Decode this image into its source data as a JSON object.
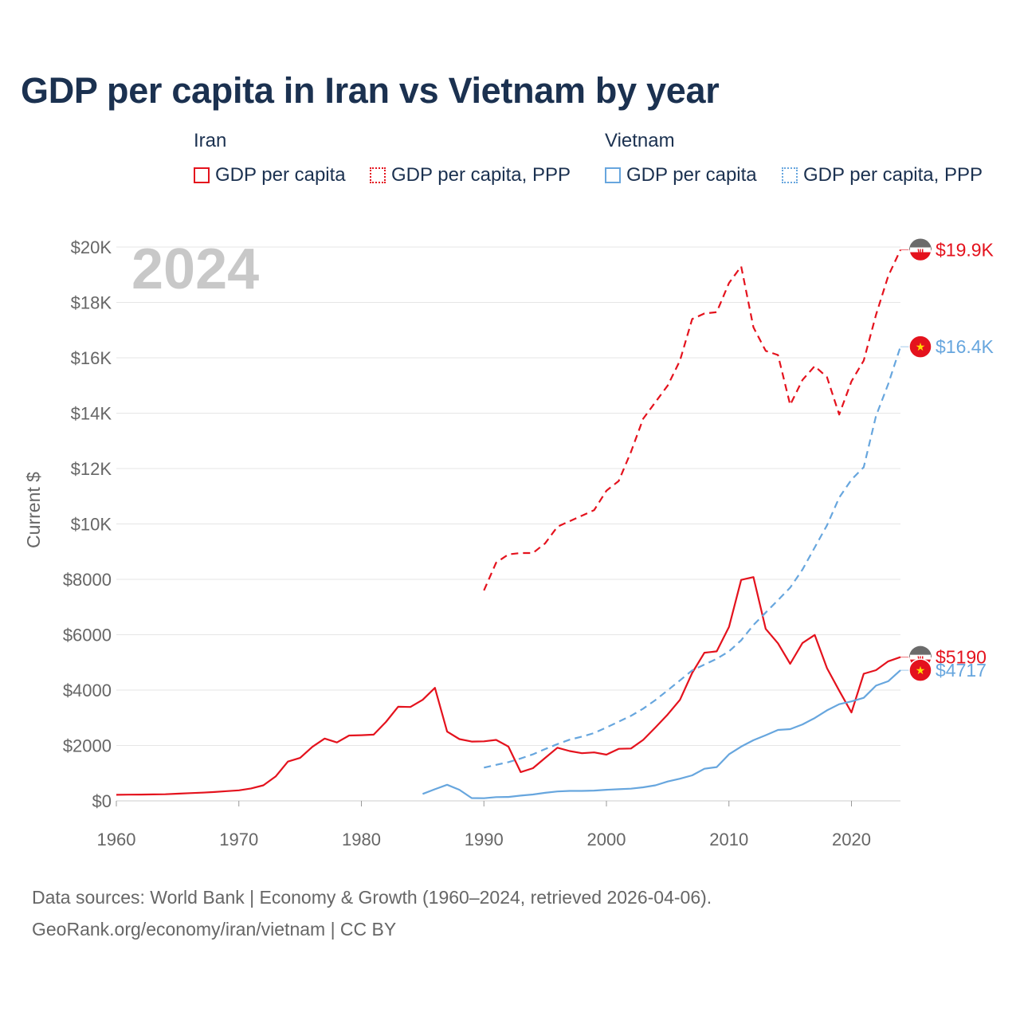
{
  "title": "GDP per capita in Iran vs Vietnam by year",
  "legend": {
    "groups": [
      {
        "country": "Iran",
        "color": "#e4121d",
        "items": [
          "GDP per capita",
          "GDP per capita, PPP"
        ]
      },
      {
        "country": "Vietnam",
        "color": "#67a6de",
        "items": [
          "GDP per capita",
          "GDP per capita, PPP"
        ]
      }
    ]
  },
  "footer": {
    "line1": "Data sources: World Bank | Economy & Growth (1960–2024, retrieved 2026-04-06).",
    "line2": "GeoRank.org/economy/iran/vietnam | CC BY"
  },
  "chart_data": {
    "type": "line",
    "title": "GDP per capita in Iran vs Vietnam by year",
    "year_watermark": "2024",
    "ylabel": "Current $",
    "xlabel": "",
    "xlim": [
      1960,
      2024
    ],
    "ylim": [
      0,
      20000
    ],
    "x_ticks": [
      1960,
      1970,
      1980,
      1990,
      2000,
      2010,
      2020
    ],
    "x_tick_labels": [
      "1960",
      "1970",
      "1980",
      "1990",
      "2000",
      "2010",
      "2020"
    ],
    "y_ticks": [
      0,
      2000,
      4000,
      6000,
      8000,
      10000,
      12000,
      14000,
      16000,
      18000,
      20000
    ],
    "y_tick_labels": [
      "$0",
      "$2000",
      "$4000",
      "$6000",
      "$8000",
      "$10K",
      "$12K",
      "$14K",
      "$16K",
      "$18K",
      "$20K"
    ],
    "grid": true,
    "series": [
      {
        "name": "Iran GDP per capita",
        "country": "Iran",
        "metric": "GDP per capita",
        "color": "#e4121d",
        "dash": "solid",
        "start_year": 1960,
        "values": [
          220,
          225,
          228,
          232,
          240,
          260,
          280,
          295,
          320,
          350,
          380,
          450,
          560,
          880,
          1420,
          1550,
          1950,
          2250,
          2110,
          2360,
          2370,
          2390,
          2850,
          3400,
          3390,
          3650,
          4080,
          2500,
          2230,
          2140,
          2150,
          2200,
          1960,
          1040,
          1180,
          1550,
          1920,
          1800,
          1720,
          1750,
          1670,
          1880,
          1890,
          2200,
          2650,
          3120,
          3650,
          4620,
          5350,
          5400,
          6280,
          7980,
          8080,
          6210,
          5690,
          4950,
          5700,
          5990,
          4790,
          3980,
          3190,
          4590,
          4720,
          5040,
          5190
        ],
        "end_label": "$5190"
      },
      {
        "name": "Iran GDP per capita, PPP",
        "country": "Iran",
        "metric": "GDP per capita, PPP",
        "color": "#e4121d",
        "dash": "dashed",
        "start_year": 1990,
        "values": [
          7600,
          8600,
          8900,
          8950,
          8950,
          9300,
          9900,
          10100,
          10300,
          10500,
          11200,
          11550,
          12600,
          13800,
          14400,
          15000,
          15900,
          17400,
          17600,
          17650,
          18700,
          19300,
          17100,
          16250,
          16100,
          14300,
          15200,
          15700,
          15300,
          13950,
          15150,
          15900,
          17550,
          18950,
          19900
        ],
        "end_label": "$19.9K"
      },
      {
        "name": "Vietnam GDP per capita",
        "country": "Vietnam",
        "metric": "GDP per capita",
        "color": "#67a6de",
        "dash": "solid",
        "start_year": 1985,
        "values": [
          250,
          420,
          580,
          400,
          100,
          95,
          135,
          140,
          190,
          230,
          290,
          340,
          360,
          360,
          370,
          400,
          420,
          440,
          490,
          560,
          700,
          800,
          920,
          1160,
          1220,
          1680,
          1960,
          2190,
          2370,
          2560,
          2590,
          2760,
          2990,
          3270,
          3490,
          3590,
          3720,
          4160,
          4320,
          4717
        ],
        "end_label": "$4717"
      },
      {
        "name": "Vietnam GDP per capita, PPP",
        "country": "Vietnam",
        "metric": "GDP per capita, PPP",
        "color": "#67a6de",
        "dash": "dashed",
        "start_year": 1990,
        "values": [
          1200,
          1300,
          1400,
          1530,
          1680,
          1870,
          2050,
          2210,
          2320,
          2450,
          2650,
          2860,
          3070,
          3330,
          3640,
          3990,
          4350,
          4710,
          4920,
          5130,
          5400,
          5800,
          6350,
          6800,
          7250,
          7700,
          8350,
          9150,
          9950,
          10950,
          11600,
          12050,
          13900,
          15050,
          16400
        ],
        "end_label": "$16.4K"
      }
    ]
  }
}
